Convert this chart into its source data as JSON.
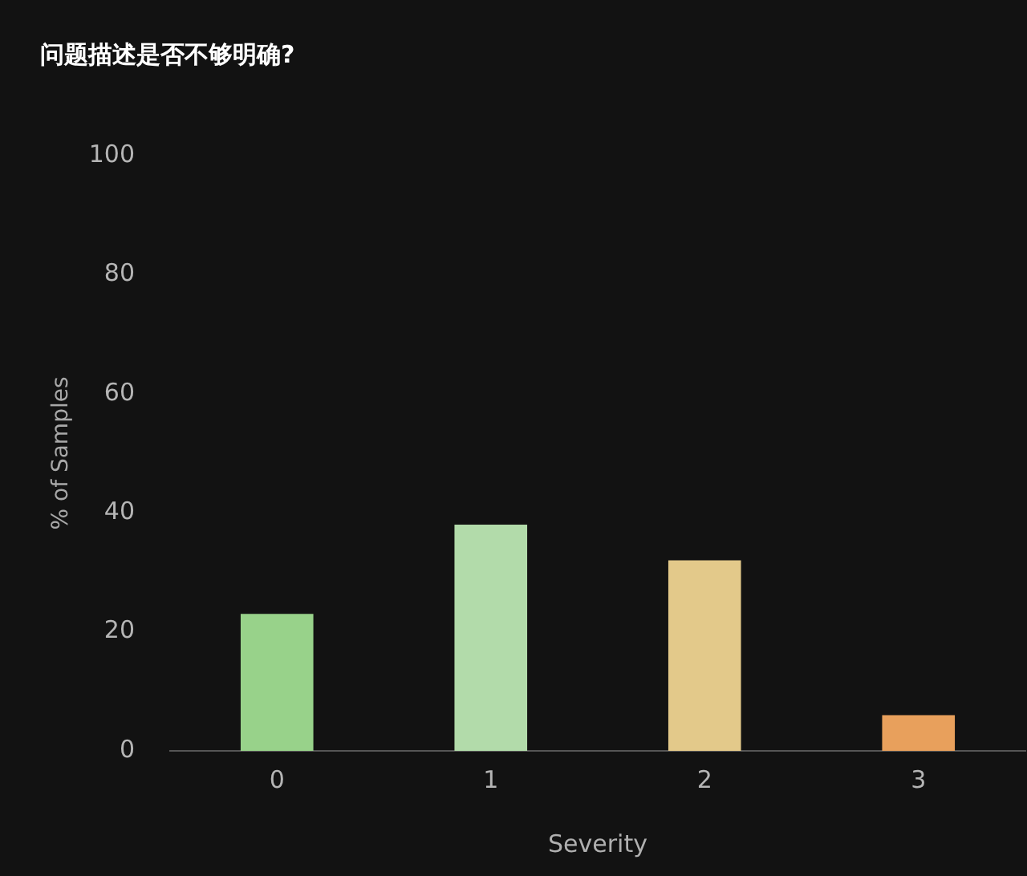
{
  "chart_data": {
    "type": "bar",
    "title": "问题描述是否不够明确?",
    "xlabel": "Severity",
    "ylabel": "% of Samples",
    "categories": [
      "0",
      "1",
      "2",
      "3"
    ],
    "values": [
      23,
      38,
      32,
      6
    ],
    "colors": [
      "#98d28a",
      "#b2dbaa",
      "#e3c98a",
      "#e8a05c"
    ],
    "ylim": [
      0,
      100
    ],
    "yticks": [
      0,
      20,
      40,
      60,
      80,
      100
    ]
  }
}
